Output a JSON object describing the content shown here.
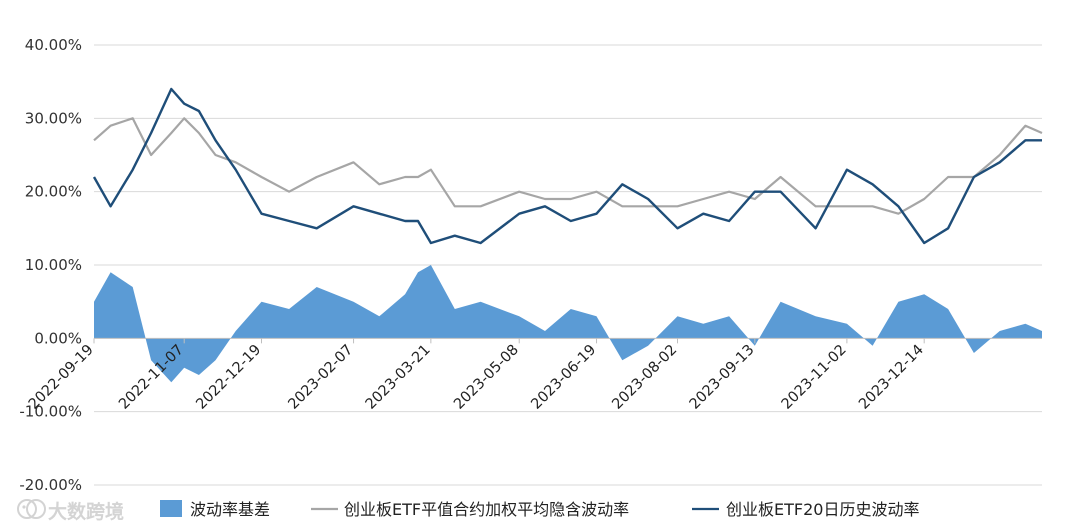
{
  "chart_data": {
    "type": "line",
    "y_unit": "percent",
    "ylim": [
      -20,
      40
    ],
    "y_ticks": [
      "40.00%",
      "30.00%",
      "20.00%",
      "10.00%",
      "0.00%",
      "-10.00%",
      "-20.00%"
    ],
    "y_tick_values": [
      40,
      30,
      20,
      10,
      0,
      -10,
      -20
    ],
    "x_range": [
      "2022-09-19",
      "2024-02-16"
    ],
    "x_tick_labels": [
      "2022-09-19",
      "2022-11-07",
      "2022-12-19",
      "2023-02-07",
      "2023-03-21",
      "2023-05-08",
      "2023-06-19",
      "2023-08-02",
      "2023-09-13",
      "2023-11-02",
      "2023-12-14"
    ],
    "grid": "horizontal",
    "legend_position": "bottom",
    "series": [
      {
        "name": "波动率基差",
        "type": "area",
        "color": "#5b9bd5",
        "x": [
          "2022-09-19",
          "2022-09-28",
          "2022-10-10",
          "2022-10-20",
          "2022-10-31",
          "2022-11-07",
          "2022-11-15",
          "2022-11-24",
          "2022-12-05",
          "2022-12-19",
          "2023-01-03",
          "2023-01-18",
          "2023-02-07",
          "2023-02-21",
          "2023-03-07",
          "2023-03-14",
          "2023-03-21",
          "2023-04-03",
          "2023-04-17",
          "2023-05-08",
          "2023-05-22",
          "2023-06-05",
          "2023-06-19",
          "2023-07-03",
          "2023-07-17",
          "2023-08-02",
          "2023-08-16",
          "2023-08-30",
          "2023-09-13",
          "2023-09-27",
          "2023-10-16",
          "2023-11-02",
          "2023-11-16",
          "2023-11-30",
          "2023-12-14",
          "2023-12-27",
          "2024-01-10",
          "2024-01-24",
          "2024-02-07",
          "2024-02-16"
        ],
        "values": [
          5,
          9,
          7,
          -3,
          -6,
          -4,
          -5,
          -3,
          1,
          5,
          4,
          7,
          5,
          3,
          6,
          9,
          10,
          4,
          5,
          3,
          1,
          4,
          3,
          -3,
          -1,
          3,
          2,
          3,
          -1,
          5,
          3,
          2,
          -1,
          5,
          6,
          4,
          -2,
          1,
          2,
          1
        ]
      },
      {
        "name": "创业板ETF平值合约加权平均隐含波动率",
        "type": "line",
        "color": "#a6a6a6",
        "x": [
          "2022-09-19",
          "2022-09-28",
          "2022-10-10",
          "2022-10-20",
          "2022-10-31",
          "2022-11-07",
          "2022-11-15",
          "2022-11-24",
          "2022-12-05",
          "2022-12-19",
          "2023-01-03",
          "2023-01-18",
          "2023-02-07",
          "2023-02-21",
          "2023-03-07",
          "2023-03-14",
          "2023-03-21",
          "2023-04-03",
          "2023-04-17",
          "2023-05-08",
          "2023-05-22",
          "2023-06-05",
          "2023-06-19",
          "2023-07-03",
          "2023-07-17",
          "2023-08-02",
          "2023-08-16",
          "2023-08-30",
          "2023-09-13",
          "2023-09-27",
          "2023-10-16",
          "2023-11-02",
          "2023-11-16",
          "2023-11-30",
          "2023-12-14",
          "2023-12-27",
          "2024-01-10",
          "2024-01-24",
          "2024-02-07",
          "2024-02-16"
        ],
        "values": [
          27,
          29,
          30,
          25,
          28,
          30,
          28,
          25,
          24,
          22,
          20,
          22,
          24,
          21,
          22,
          22,
          23,
          18,
          18,
          20,
          19,
          19,
          20,
          18,
          18,
          18,
          19,
          20,
          19,
          22,
          18,
          18,
          18,
          17,
          19,
          22,
          22,
          25,
          29,
          28
        ]
      },
      {
        "name": "创业板ETF20日历史波动率",
        "type": "line",
        "color": "#1f4e79",
        "x": [
          "2022-09-19",
          "2022-09-28",
          "2022-10-10",
          "2022-10-20",
          "2022-10-31",
          "2022-11-07",
          "2022-11-15",
          "2022-11-24",
          "2022-12-05",
          "2022-12-19",
          "2023-01-03",
          "2023-01-18",
          "2023-02-07",
          "2023-02-21",
          "2023-03-07",
          "2023-03-14",
          "2023-03-21",
          "2023-04-03",
          "2023-04-17",
          "2023-05-08",
          "2023-05-22",
          "2023-06-05",
          "2023-06-19",
          "2023-07-03",
          "2023-07-17",
          "2023-08-02",
          "2023-08-16",
          "2023-08-30",
          "2023-09-13",
          "2023-09-27",
          "2023-10-16",
          "2023-11-02",
          "2023-11-16",
          "2023-11-30",
          "2023-12-14",
          "2023-12-27",
          "2024-01-10",
          "2024-01-24",
          "2024-02-07",
          "2024-02-16"
        ],
        "values": [
          22,
          18,
          23,
          28,
          34,
          32,
          31,
          27,
          23,
          17,
          16,
          15,
          18,
          17,
          16,
          16,
          13,
          14,
          13,
          17,
          18,
          16,
          17,
          21,
          19,
          15,
          17,
          16,
          20,
          20,
          15,
          23,
          21,
          18,
          13,
          15,
          22,
          24,
          27,
          27
        ]
      }
    ]
  },
  "watermark": {
    "text": "大数跨境",
    "icon": "elephant-logo-icon"
  }
}
